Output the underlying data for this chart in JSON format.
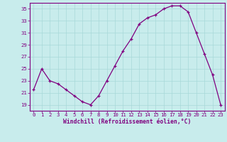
{
  "x": [
    0,
    1,
    2,
    3,
    4,
    5,
    6,
    7,
    8,
    9,
    10,
    11,
    12,
    13,
    14,
    15,
    16,
    17,
    18,
    19,
    20,
    21,
    22,
    23
  ],
  "y": [
    21.5,
    25.0,
    23.0,
    22.5,
    21.5,
    20.5,
    19.5,
    19.0,
    20.5,
    23.0,
    25.5,
    28.0,
    30.0,
    32.5,
    33.5,
    34.0,
    35.0,
    35.5,
    35.5,
    34.5,
    31.0,
    27.5,
    24.0,
    19.0
  ],
  "xlim": [
    -0.5,
    23.5
  ],
  "ylim": [
    18,
    36
  ],
  "yticks": [
    19,
    21,
    23,
    25,
    27,
    29,
    31,
    33,
    35
  ],
  "xtick_labels": [
    "0",
    "1",
    "2",
    "3",
    "4",
    "5",
    "6",
    "7",
    "8",
    "9",
    "10",
    "11",
    "12",
    "13",
    "14",
    "15",
    "16",
    "17",
    "18",
    "19",
    "20",
    "21",
    "22",
    "23"
  ],
  "xlabel": "Windchill (Refroidissement éolien,°C)",
  "line_color": "#800080",
  "marker": "+",
  "bg_color": "#c8ecec",
  "grid_color": "#a8d8d8",
  "tick_color": "#800080",
  "label_color": "#800080",
  "spine_color": "#800080"
}
